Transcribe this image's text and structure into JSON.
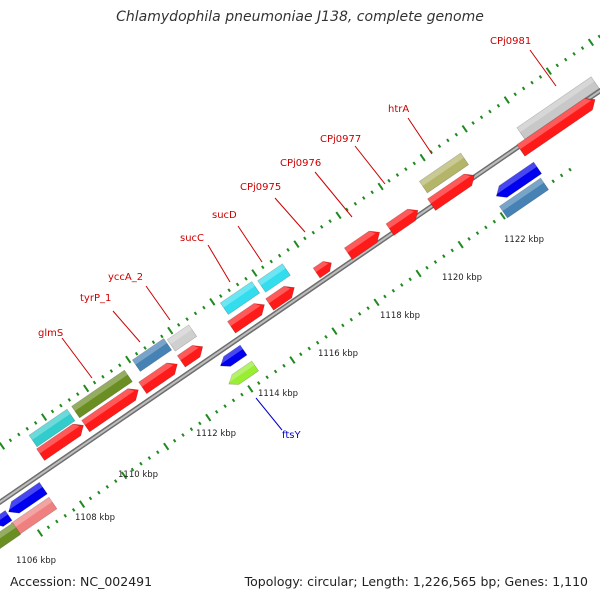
{
  "title": "Chlamydophila pneumoniae J138, complete genome",
  "accession": "Accession: NC_002491",
  "summary": "Topology: circular; Length: 1,226,565 bp; Genes: 1,110",
  "colors": {
    "backbone": "#8a8a8a",
    "tick": "#1f8a1f",
    "forward_label": "#cc0000",
    "reverse_label": "#0000cc",
    "cds": "#ff1a1a"
  },
  "kbp_labels": [
    "1106 kbp",
    "1108 kbp",
    "1110 kbp",
    "1112 kbp",
    "1114 kbp",
    "1116 kbp",
    "1118 kbp",
    "1120 kbp",
    "1122 kbp"
  ],
  "forward_gene_labels": [
    "glmS",
    "tyrP_1",
    "yccA_2",
    "sucC",
    "sucD",
    "CPj0975",
    "CPj0976",
    "CPj0977",
    "htrA",
    "CPj0981"
  ],
  "reverse_gene_labels": [
    "ftsY"
  ]
}
